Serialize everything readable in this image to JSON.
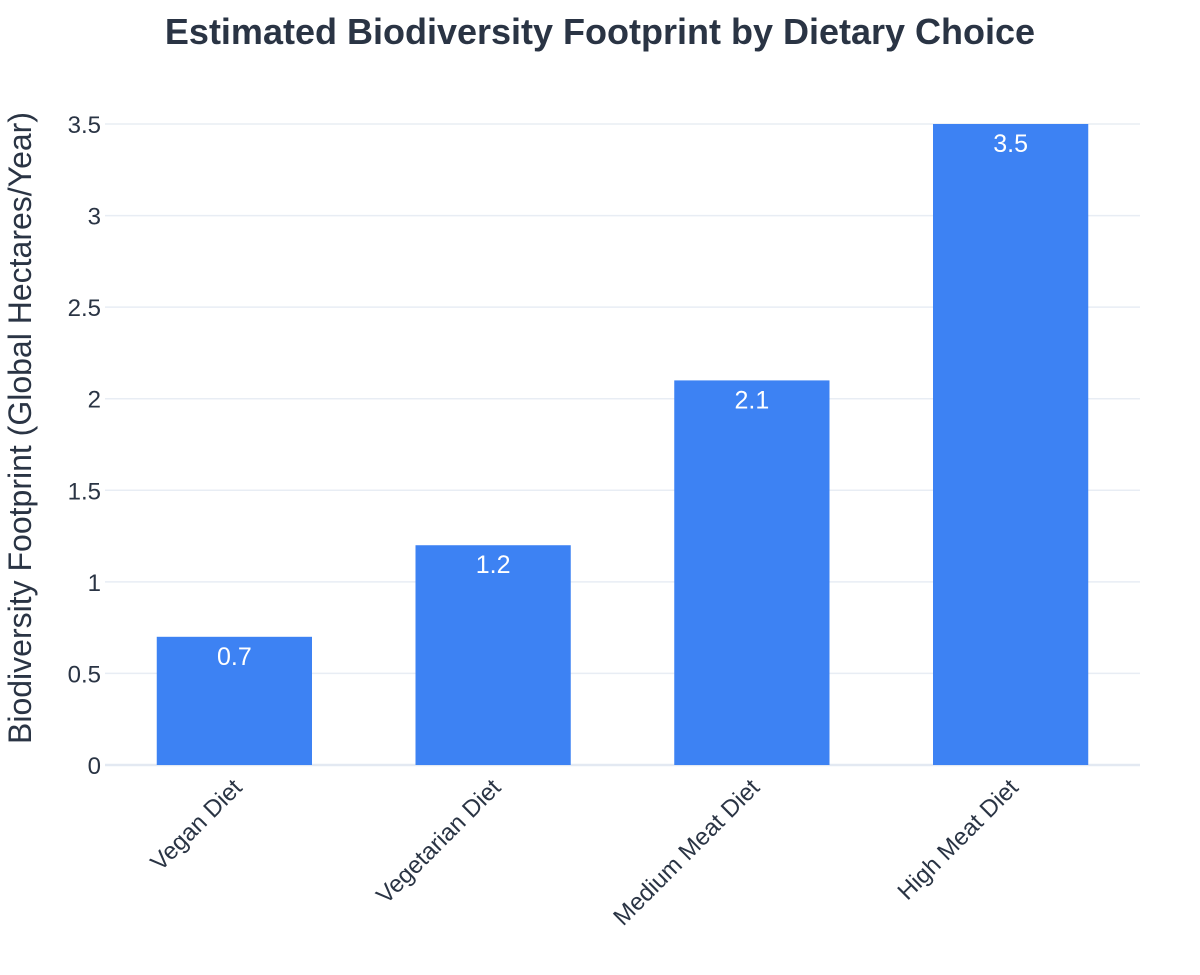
{
  "chart_data": {
    "type": "bar",
    "title": "Estimated Biodiversity Footprint by Dietary Choice",
    "xlabel": "",
    "ylabel": "Biodiversity Footprint (Global Hectares/Year)",
    "categories": [
      "Vegan Diet",
      "Vegetarian Diet",
      "Medium Meat Diet",
      "High Meat Diet"
    ],
    "values": [
      0.7,
      1.2,
      2.1,
      3.5
    ],
    "value_labels": [
      "0.7",
      "1.2",
      "2.1",
      "3.5"
    ],
    "ylim": [
      0,
      3.5
    ],
    "yticks": [
      0,
      0.5,
      1,
      1.5,
      2,
      2.5,
      3,
      3.5
    ],
    "ytick_labels": [
      "0",
      "0.5",
      "1",
      "1.5",
      "2",
      "2.5",
      "3",
      "3.5"
    ],
    "grid": true,
    "legend": "none",
    "bar_color": "#3d82f3",
    "text_color": "#2a3444",
    "label_color": "#ffffff"
  }
}
